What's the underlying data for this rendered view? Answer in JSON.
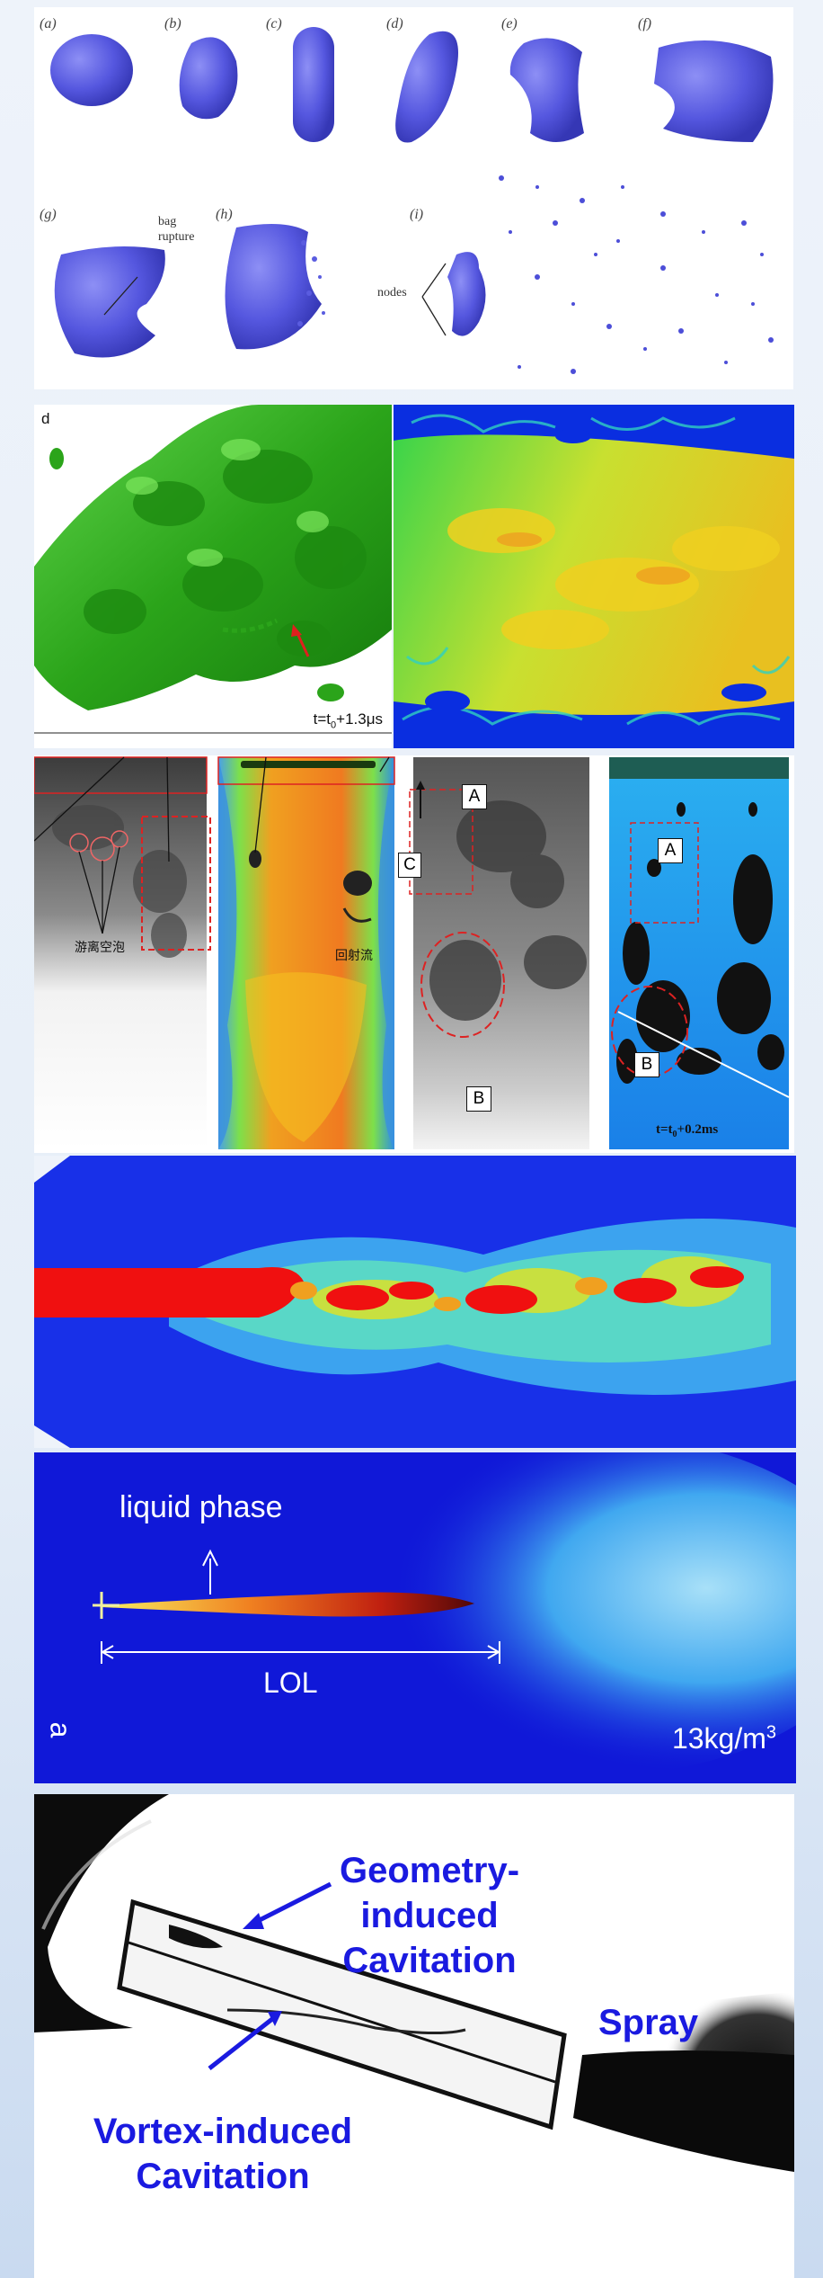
{
  "panel1": {
    "subfigure_labels": [
      "(a)",
      "(b)",
      "(c)",
      "(d)",
      "(e)",
      "(f)",
      "(g)",
      "(h)",
      "(i)"
    ],
    "annotations": {
      "bag_rupture": [
        "bag",
        "rupture"
      ],
      "nodes": "nodes"
    },
    "colors": {
      "droplet": "#5a5ce0"
    }
  },
  "panel2": {
    "label": "d",
    "time": "t=t",
    "time_sub": "0",
    "time_rest": "+1.3μs",
    "colors": {
      "isosurface": "#2fa81c",
      "arrow": "#e0201e"
    }
  },
  "panel3": {
    "chinese_label_1": "游离空泡",
    "chinese_label_2": "回射流",
    "box_labels": {
      "a": "A",
      "b": "B",
      "c": "C"
    },
    "time": "t=t",
    "time_sub": "0",
    "time_rest": "+0.2ms"
  },
  "panel5": {
    "liquid_phase": "liquid phase",
    "lol": "LOL",
    "corner": "a",
    "density": "13kg/m",
    "density_sup": "3"
  },
  "panel6": {
    "geometry_line1": "Geometry-induced",
    "geometry_line2": "Cavitation",
    "spray": "Spray",
    "vortex_line1": "Vortex-induced",
    "vortex_line2": "Cavitation",
    "colors": {
      "label": "#1a1ae0"
    }
  }
}
